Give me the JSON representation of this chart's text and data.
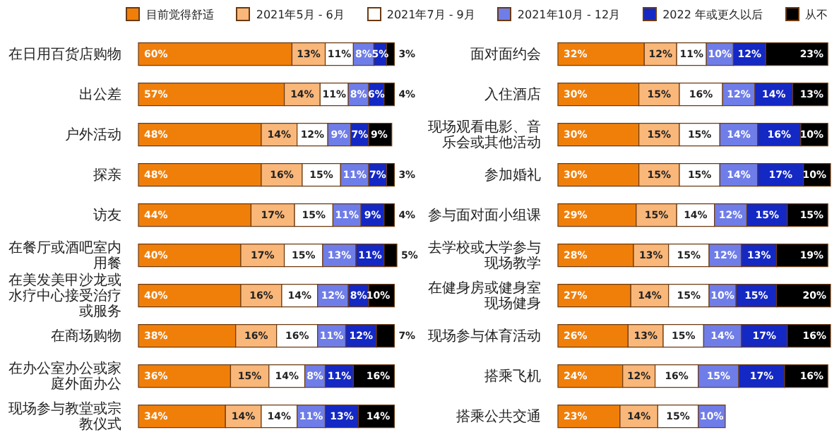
{
  "chart_data": [
    {
      "type": "bar",
      "orientation": "horizontal",
      "stacked": true,
      "legend": "top right",
      "grid": false,
      "tick_labels": "y",
      "categories": [
        "在日用百货店购物",
        "出公差",
        "户外活动",
        "探亲",
        "访友",
        "在餐厅或酒吧室内用餐",
        "在美发美甲沙龙或水疗中心接受治疗或服务",
        "在商场购物",
        "在办公室办公或家庭外面办公",
        "现场参与教堂或宗教仪式"
      ],
      "series": [
        {
          "name": "目前觉得舒适",
          "color": "#f07f0a",
          "values": [
            60,
            57,
            48,
            48,
            44,
            40,
            40,
            38,
            36,
            34
          ],
          "value_labels": [
            "60%",
            "57%",
            "48%",
            "48%",
            "44%",
            "40%",
            "40%",
            "38%",
            "36%",
            "34%"
          ]
        },
        {
          "name": "2021年5月 - 6月",
          "color": "#f9b77a",
          "values": [
            13,
            14,
            14,
            16,
            17,
            17,
            16,
            16,
            15,
            14
          ],
          "value_labels": [
            "13%",
            "14%",
            "14%",
            "16%",
            "17%",
            "17%",
            "16%",
            "16%",
            "15%",
            "14%"
          ]
        },
        {
          "name": "2021年7月 - 9月",
          "color": "#ffffff",
          "values": [
            11,
            11,
            12,
            15,
            15,
            15,
            14,
            16,
            14,
            14
          ],
          "value_labels": [
            "11%",
            "11%",
            "12%",
            "15%",
            "15%",
            "15%",
            "14%",
            "16%",
            "14%",
            "14%"
          ]
        },
        {
          "name": "2021年10月 - 12月",
          "color": "#6f7de8",
          "values": [
            8,
            8,
            9,
            11,
            11,
            13,
            12,
            11,
            8,
            11
          ],
          "value_labels": [
            "8%",
            "8%",
            "9%",
            "11%",
            "11%",
            "13%",
            "12%",
            "11%",
            "8%",
            "11%"
          ]
        },
        {
          "name": "2022 年或更久以后",
          "color": "#1428c4",
          "values": [
            5,
            6,
            7,
            7,
            9,
            11,
            8,
            12,
            11,
            13
          ],
          "value_labels": [
            "5%",
            "6%",
            "7%",
            "7%",
            "9%",
            "11%",
            "8%",
            "12%",
            "11%",
            "13%"
          ]
        },
        {
          "name": "从不",
          "color": "#000000",
          "values": [
            3,
            4,
            9,
            3,
            4,
            5,
            10,
            7,
            16,
            14
          ],
          "value_labels": [
            "3%",
            "4%",
            "9%",
            "3%",
            "4%",
            "5%",
            "10%",
            "7%",
            "16%",
            "14%"
          ]
        }
      ]
    },
    {
      "type": "bar",
      "orientation": "horizontal",
      "stacked": true,
      "grid": false,
      "tick_labels": "y",
      "categories": [
        "面对面约会",
        "入住酒店",
        "现场观看电影、音乐会或其他活动",
        "参加婚礼",
        "参与面对面小组课",
        "去学校或大学参与现场教学",
        "在健身房或健身室现场健身",
        "现场参与体育活动",
        "搭乘飞机",
        "搭乘公共交通"
      ],
      "series": [
        {
          "color": "#f07f0a",
          "values": [
            32,
            30,
            30,
            30,
            29,
            28,
            27,
            26,
            24,
            23
          ],
          "value_labels": [
            "32%",
            "30%",
            "30%",
            "30%",
            "29%",
            "28%",
            "27%",
            "26%",
            "24%",
            "23%"
          ]
        },
        {
          "color": "#f9b77a",
          "values": [
            12,
            15,
            15,
            15,
            15,
            13,
            14,
            13,
            12,
            14
          ],
          "value_labels": [
            "12%",
            "15%",
            "15%",
            "15%",
            "15%",
            "13%",
            "14%",
            "13%",
            "12%",
            "14%"
          ]
        },
        {
          "color": "#ffffff",
          "values": [
            11,
            16,
            15,
            15,
            14,
            15,
            15,
            15,
            16,
            15
          ],
          "value_labels": [
            "11%",
            "16%",
            "15%",
            "15%",
            "14%",
            "15%",
            "15%",
            "15%",
            "16%",
            "15%"
          ]
        },
        {
          "color": "#6f7de8",
          "values": [
            10,
            12,
            14,
            14,
            12,
            12,
            10,
            14,
            15,
            10
          ],
          "value_labels": [
            "10%",
            "12%",
            "14%",
            "14%",
            "12%",
            "12%",
            "10%",
            "14%",
            "15%",
            "10%"
          ]
        },
        {
          "color": "#1428c4",
          "values": [
            12,
            14,
            16,
            17,
            15,
            13,
            15,
            17,
            17,
            null
          ],
          "value_labels": [
            "12%",
            "14%",
            "16%",
            "17%",
            "15%",
            "13%",
            "15%",
            "17%",
            "17%",
            null
          ]
        },
        {
          "color": "#000000",
          "values": [
            23,
            13,
            10,
            10,
            15,
            19,
            20,
            16,
            16,
            null
          ],
          "value_labels": [
            "23%",
            "13%",
            "10%",
            "10%",
            "15%",
            "19%",
            "20%",
            "16%",
            "16%",
            null
          ]
        }
      ]
    }
  ]
}
